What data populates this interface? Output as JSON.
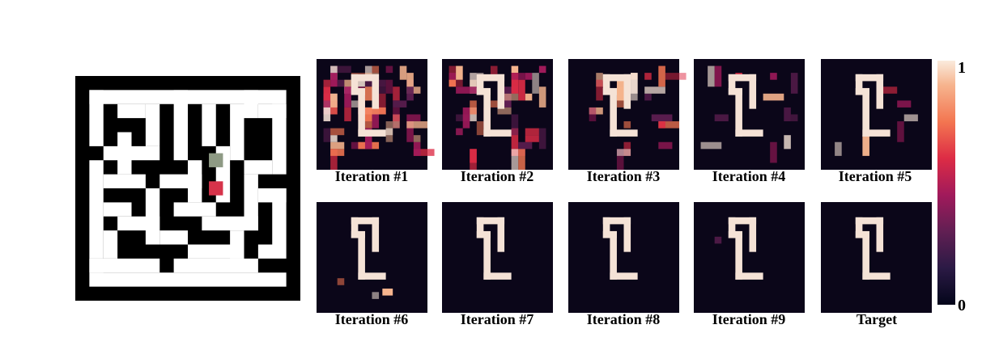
{
  "panels": [
    {
      "label": "Iteration #1"
    },
    {
      "label": "Iteration #2"
    },
    {
      "label": "Iteration #3"
    },
    {
      "label": "Iteration #4"
    },
    {
      "label": "Iteration #5"
    },
    {
      "label": "Iteration #6"
    },
    {
      "label": "Iteration #7"
    },
    {
      "label": "Iteration #8"
    },
    {
      "label": "Iteration #9"
    },
    {
      "label": "Target"
    }
  ],
  "colorbar": {
    "max_label": "1",
    "min_label": "0"
  },
  "colors": {
    "background": "#0b0619",
    "wall": "#000000",
    "open": "#ffffff",
    "start": "#8e9a84",
    "goal": "#d6334a",
    "path": "#f5e2d6"
  }
}
